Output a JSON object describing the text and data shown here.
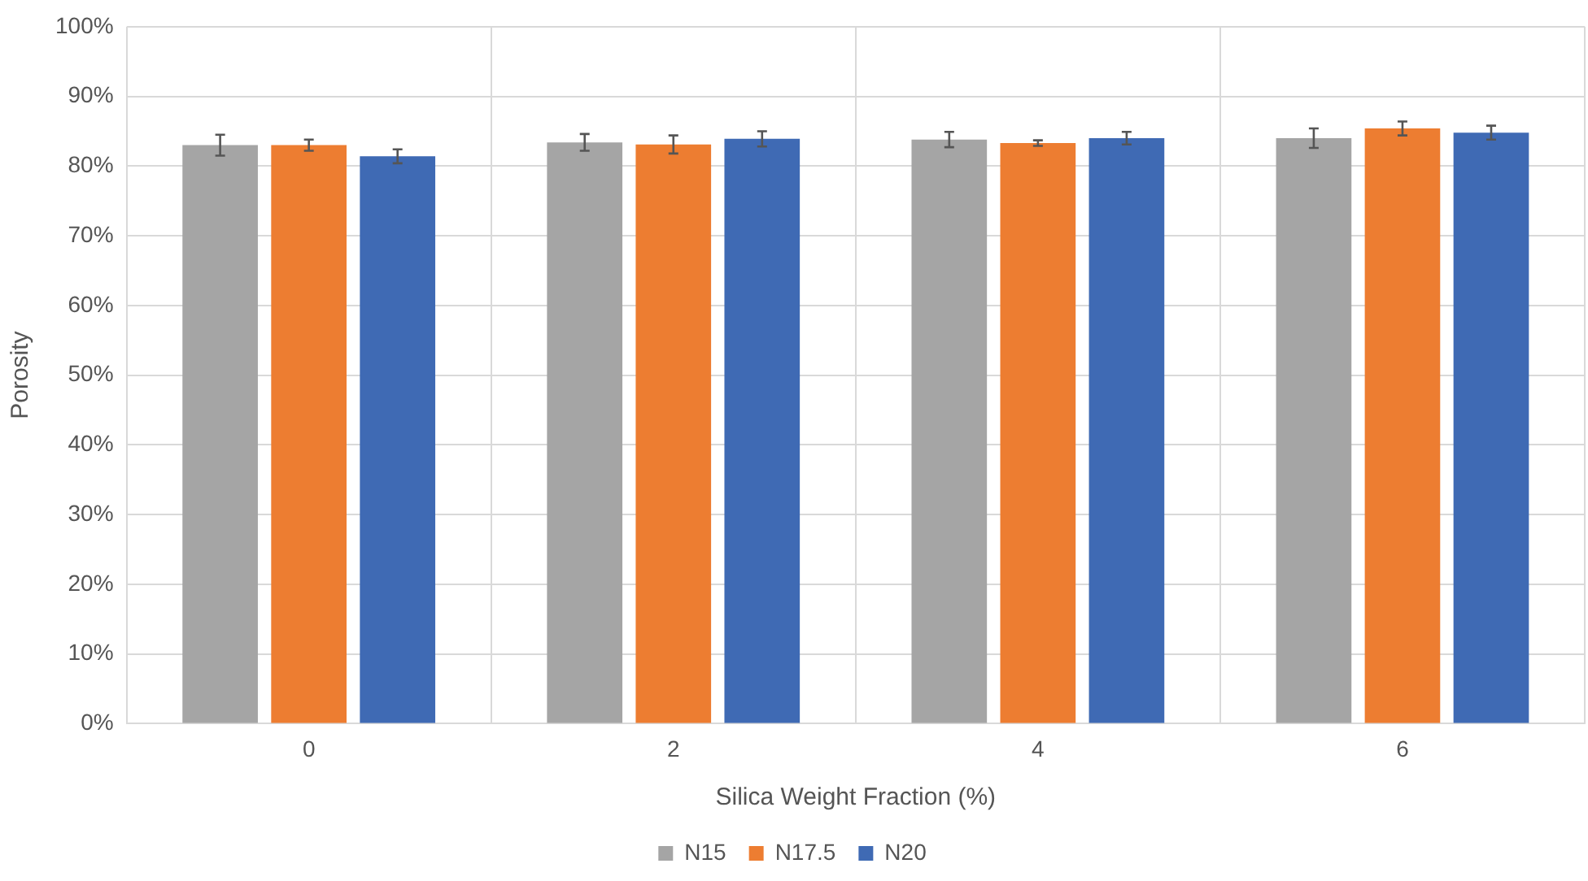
{
  "chart_data": {
    "type": "bar",
    "xlabel": "Silica Weight Fraction (%)",
    "ylabel": "Porosity",
    "categories": [
      "0",
      "2",
      "4",
      "6"
    ],
    "series": [
      {
        "name": "N15",
        "color": "#a5a5a5",
        "values": [
          83.0,
          83.4,
          83.8,
          84.0
        ],
        "errors": [
          1.5,
          1.2,
          1.1,
          1.4
        ]
      },
      {
        "name": "N17.5",
        "color": "#ed7d31",
        "values": [
          83.0,
          83.1,
          83.3,
          85.4
        ],
        "errors": [
          0.8,
          1.3,
          0.4,
          1.0
        ]
      },
      {
        "name": "N20",
        "color": "#3f6ab4",
        "values": [
          81.4,
          83.9,
          84.0,
          84.8
        ],
        "errors": [
          1.0,
          1.1,
          0.9,
          1.0
        ]
      }
    ],
    "ylim": [
      0,
      100
    ],
    "yticks": [
      {
        "value": 0,
        "label": "0%"
      },
      {
        "value": 10,
        "label": "10%"
      },
      {
        "value": 20,
        "label": "20%"
      },
      {
        "value": 30,
        "label": "30%"
      },
      {
        "value": 40,
        "label": "40%"
      },
      {
        "value": 50,
        "label": "50%"
      },
      {
        "value": 60,
        "label": "60%"
      },
      {
        "value": 70,
        "label": "70%"
      },
      {
        "value": 80,
        "label": "80%"
      },
      {
        "value": 90,
        "label": "90%"
      },
      {
        "value": 100,
        "label": "100%"
      }
    ],
    "grid": true,
    "legend": "bottom"
  }
}
